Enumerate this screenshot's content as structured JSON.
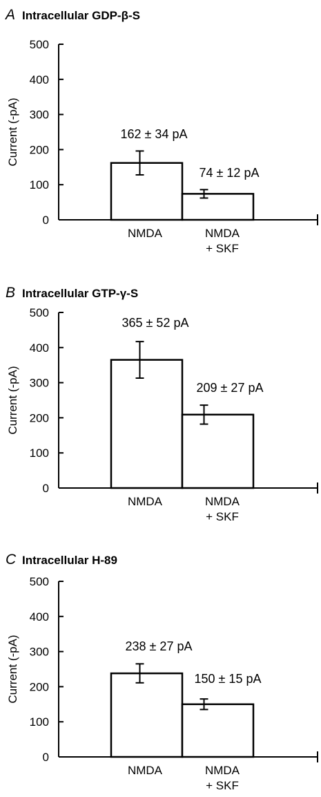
{
  "chart_data": [
    {
      "type": "bar",
      "panel": "A",
      "title": "Intracellular GDP-β-S",
      "ylabel": "Current (-pA)",
      "ylim": [
        0,
        500
      ],
      "yticks": [
        "0",
        "100",
        "200",
        "300",
        "400",
        "500"
      ],
      "categories": [
        "NMDA",
        "NMDA\n+ SKF"
      ],
      "values": [
        162,
        74
      ],
      "errors": [
        34,
        12
      ],
      "data_labels": [
        "162 ± 34 pA",
        "74 ± 12 pA"
      ]
    },
    {
      "type": "bar",
      "panel": "B",
      "title": "Intracellular GTP-γ-S",
      "ylabel": "Current (-pA)",
      "ylim": [
        0,
        500
      ],
      "yticks": [
        "0",
        "100",
        "200",
        "300",
        "400",
        "500"
      ],
      "categories": [
        "NMDA",
        "NMDA\n+ SKF"
      ],
      "values": [
        365,
        209
      ],
      "errors": [
        52,
        27
      ],
      "data_labels": [
        "365 ± 52 pA",
        "209 ± 27 pA"
      ]
    },
    {
      "type": "bar",
      "panel": "C",
      "title": "Intracellular H-89",
      "ylabel": "Current (-pA)",
      "ylim": [
        0,
        500
      ],
      "yticks": [
        "0",
        "100",
        "200",
        "300",
        "400",
        "500"
      ],
      "categories": [
        "NMDA",
        "NMDA\n+ SKF"
      ],
      "values": [
        238,
        150
      ],
      "errors": [
        27,
        15
      ],
      "data_labels": [
        "238 ± 27 pA",
        "150 ± 15 pA"
      ]
    }
  ]
}
